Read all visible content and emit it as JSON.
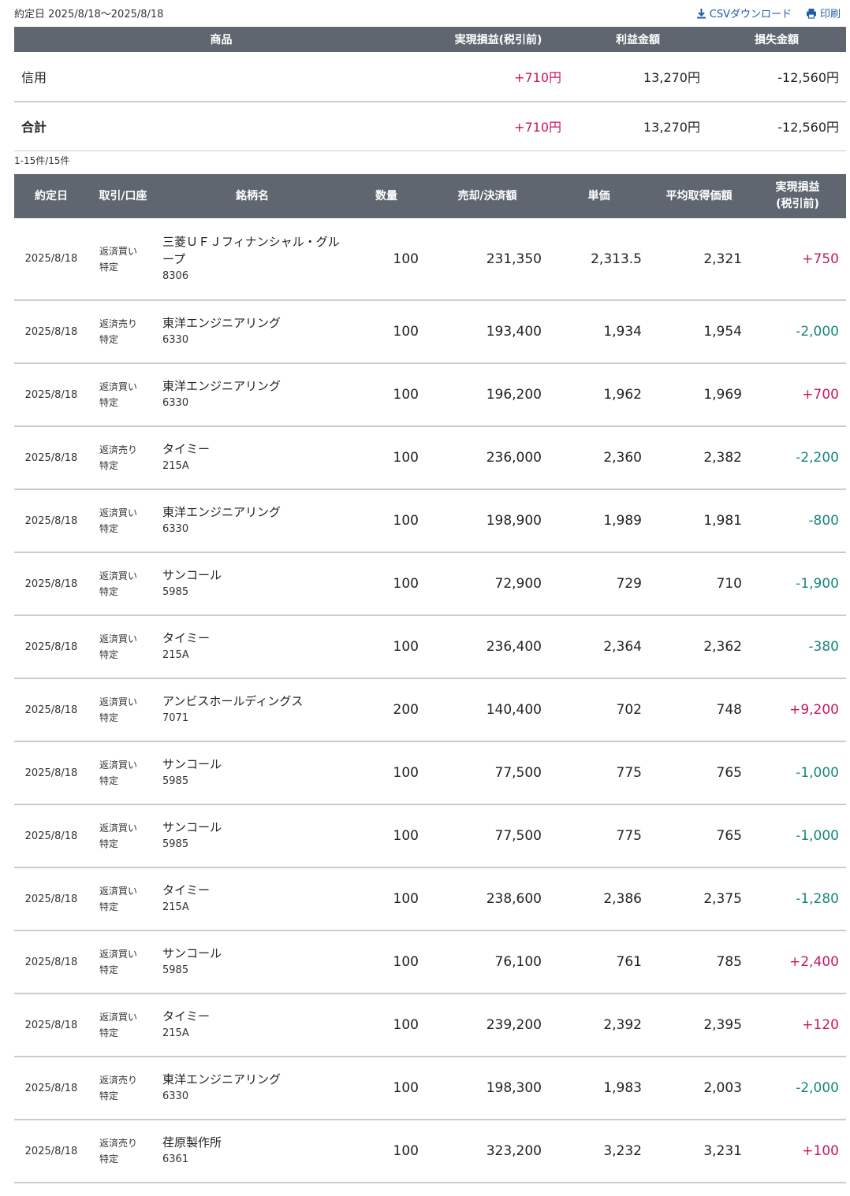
{
  "header": {
    "date_range": "約定日 2025/8/18〜2025/8/18",
    "csv_label": "CSVダウンロード",
    "print_label": "印刷"
  },
  "summary": {
    "columns": [
      "商品",
      "実現損益(税引前)",
      "利益金額",
      "損失金額"
    ],
    "rows": [
      {
        "product": "信用",
        "realized": "+710円",
        "profit": "13,270円",
        "loss": "-12,560円"
      },
      {
        "product": "合計",
        "realized": "+710円",
        "profit": "13,270円",
        "loss": "-12,560円"
      }
    ]
  },
  "count_text": "1-15件/15件",
  "detail": {
    "columns": {
      "date": "約定日",
      "kind": "取引/口座",
      "name": "銘柄名",
      "qty": "数量",
      "amount": "売却/決済額",
      "price": "単価",
      "avg": "平均取得価額",
      "pl_line1": "実現損益",
      "pl_line2": "(税引前)"
    },
    "rows": [
      {
        "date": "2025/8/18",
        "trade": "返済買い",
        "account": "特定",
        "name": "三菱ＵＦＪフィナンシャル・グループ",
        "code": "8306",
        "qty": "100",
        "amount": "231,350",
        "price": "2,313.5",
        "avg": "2,321",
        "pl": "+750",
        "sign": "pos"
      },
      {
        "date": "2025/8/18",
        "trade": "返済売り",
        "account": "特定",
        "name": "東洋エンジニアリング",
        "code": "6330",
        "qty": "100",
        "amount": "193,400",
        "price": "1,934",
        "avg": "1,954",
        "pl": "-2,000",
        "sign": "neg"
      },
      {
        "date": "2025/8/18",
        "trade": "返済買い",
        "account": "特定",
        "name": "東洋エンジニアリング",
        "code": "6330",
        "qty": "100",
        "amount": "196,200",
        "price": "1,962",
        "avg": "1,969",
        "pl": "+700",
        "sign": "pos"
      },
      {
        "date": "2025/8/18",
        "trade": "返済売り",
        "account": "特定",
        "name": "タイミー",
        "code": "215A",
        "qty": "100",
        "amount": "236,000",
        "price": "2,360",
        "avg": "2,382",
        "pl": "-2,200",
        "sign": "neg"
      },
      {
        "date": "2025/8/18",
        "trade": "返済買い",
        "account": "特定",
        "name": "東洋エンジニアリング",
        "code": "6330",
        "qty": "100",
        "amount": "198,900",
        "price": "1,989",
        "avg": "1,981",
        "pl": "-800",
        "sign": "neg"
      },
      {
        "date": "2025/8/18",
        "trade": "返済買い",
        "account": "特定",
        "name": "サンコール",
        "code": "5985",
        "qty": "100",
        "amount": "72,900",
        "price": "729",
        "avg": "710",
        "pl": "-1,900",
        "sign": "neg"
      },
      {
        "date": "2025/8/18",
        "trade": "返済買い",
        "account": "特定",
        "name": "タイミー",
        "code": "215A",
        "qty": "100",
        "amount": "236,400",
        "price": "2,364",
        "avg": "2,362",
        "pl": "-380",
        "sign": "neg"
      },
      {
        "date": "2025/8/18",
        "trade": "返済買い",
        "account": "特定",
        "name": "アンビスホールディングス",
        "code": "7071",
        "qty": "200",
        "amount": "140,400",
        "price": "702",
        "avg": "748",
        "pl": "+9,200",
        "sign": "pos"
      },
      {
        "date": "2025/8/18",
        "trade": "返済買い",
        "account": "特定",
        "name": "サンコール",
        "code": "5985",
        "qty": "100",
        "amount": "77,500",
        "price": "775",
        "avg": "765",
        "pl": "-1,000",
        "sign": "neg"
      },
      {
        "date": "2025/8/18",
        "trade": "返済買い",
        "account": "特定",
        "name": "サンコール",
        "code": "5985",
        "qty": "100",
        "amount": "77,500",
        "price": "775",
        "avg": "765",
        "pl": "-1,000",
        "sign": "neg"
      },
      {
        "date": "2025/8/18",
        "trade": "返済買い",
        "account": "特定",
        "name": "タイミー",
        "code": "215A",
        "qty": "100",
        "amount": "238,600",
        "price": "2,386",
        "avg": "2,375",
        "pl": "-1,280",
        "sign": "neg"
      },
      {
        "date": "2025/8/18",
        "trade": "返済買い",
        "account": "特定",
        "name": "サンコール",
        "code": "5985",
        "qty": "100",
        "amount": "76,100",
        "price": "761",
        "avg": "785",
        "pl": "+2,400",
        "sign": "pos"
      },
      {
        "date": "2025/8/18",
        "trade": "返済買い",
        "account": "特定",
        "name": "タイミー",
        "code": "215A",
        "qty": "100",
        "amount": "239,200",
        "price": "2,392",
        "avg": "2,395",
        "pl": "+120",
        "sign": "pos"
      },
      {
        "date": "2025/8/18",
        "trade": "返済売り",
        "account": "特定",
        "name": "東洋エンジニアリング",
        "code": "6330",
        "qty": "100",
        "amount": "198,300",
        "price": "1,983",
        "avg": "2,003",
        "pl": "-2,000",
        "sign": "neg"
      },
      {
        "date": "2025/8/18",
        "trade": "返済売り",
        "account": "特定",
        "name": "荏原製作所",
        "code": "6361",
        "qty": "100",
        "amount": "323,200",
        "price": "3,232",
        "avg": "3,231",
        "pl": "+100",
        "sign": "pos"
      }
    ]
  },
  "colors": {
    "header_bg": "#5f6670",
    "positive": "#c8175f",
    "negative": "#16877a",
    "link": "#1f5fa8"
  },
  "icons": {
    "csv": "download-icon",
    "print": "printer-icon"
  }
}
